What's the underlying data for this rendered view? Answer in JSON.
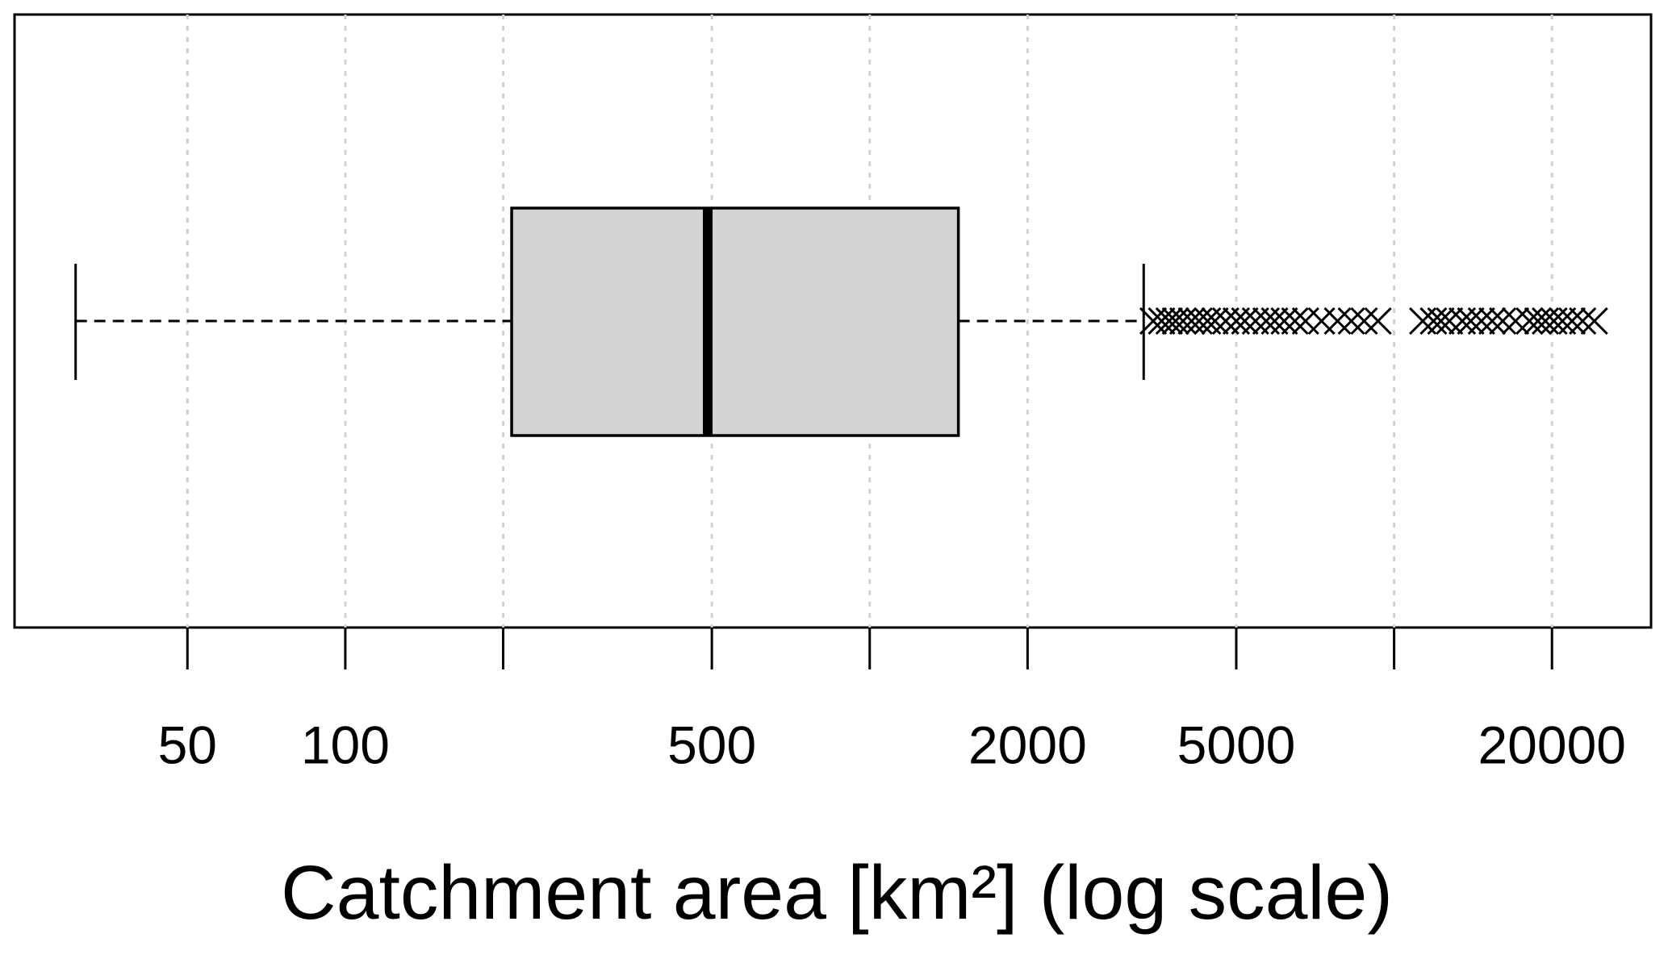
{
  "chart_data": {
    "type": "boxplot",
    "xlabel": "Catchment area [km²] (log scale)",
    "log_x": true,
    "xlim": [
      23.4,
      30900
    ],
    "xticks": [
      50,
      100,
      500,
      2000,
      5000,
      20000
    ],
    "minor_xticks": [
      200,
      1000,
      10000
    ],
    "grid": true,
    "color": "#d3d3d3",
    "box": {
      "whislo": 30.6,
      "q1": 207.6,
      "median": 491,
      "q3": 1476,
      "whishi": 3330,
      "fliers": [
        3472,
        3603,
        3724,
        3830,
        3958,
        4108,
        4246,
        4407,
        4554,
        4773,
        5000,
        5191,
        5440,
        5700,
        5918,
        6173,
        6468,
        6777,
        7271,
        7801,
        8288,
        8768,
        9318,
        11340,
        11885,
        12280,
        12750,
        13490,
        14000,
        14670,
        15380,
        16110,
        17040,
        18110,
        18800,
        19430,
        20170,
        20940,
        21840,
        22880,
        24090
      ]
    }
  }
}
